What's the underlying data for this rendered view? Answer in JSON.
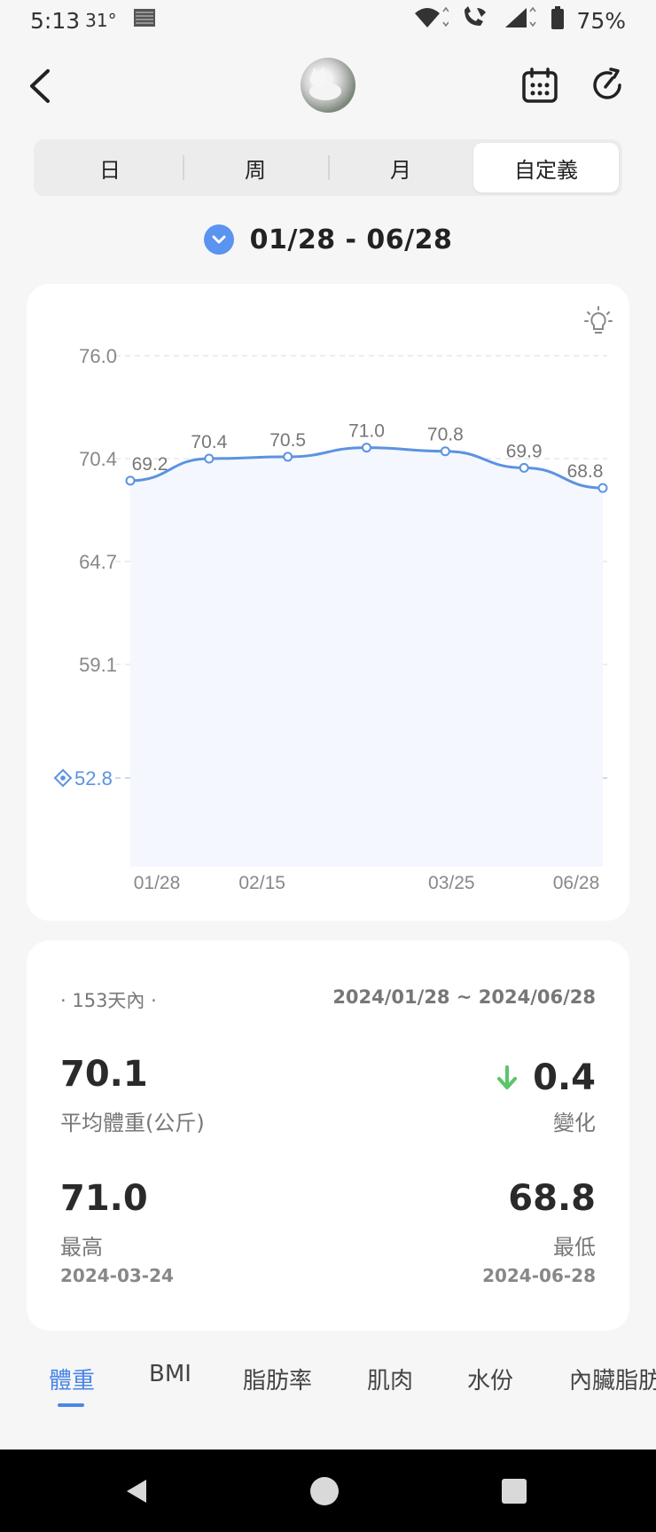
{
  "status": {
    "time": "5:13",
    "temperature": "31°",
    "battery": "75%"
  },
  "header": {
    "back_icon": "back-arrow-icon",
    "calendar_icon": "calendar-icon",
    "refresh_icon": "refresh-icon"
  },
  "segments": [
    {
      "label": "日",
      "active": false
    },
    {
      "label": "周",
      "active": false
    },
    {
      "label": "月",
      "active": false
    },
    {
      "label": "自定義",
      "active": true
    }
  ],
  "date_range": "01/28 - 06/28",
  "chart_data": {
    "type": "line",
    "x": [
      "01/28",
      "02/15",
      "03/25",
      "06/28"
    ],
    "points": [
      {
        "label": "69.2",
        "value": 69.2
      },
      {
        "label": "70.4",
        "value": 70.4
      },
      {
        "label": "70.5",
        "value": 70.5
      },
      {
        "label": "71.0",
        "value": 71.0
      },
      {
        "label": "70.8",
        "value": 70.8
      },
      {
        "label": "69.9",
        "value": 69.9
      },
      {
        "label": "68.8",
        "value": 68.8
      }
    ],
    "y_ticks": [
      "76.0",
      "70.4",
      "64.7",
      "59.1"
    ],
    "target_value": "52.8",
    "ylim": [
      52.8,
      76.0
    ],
    "grid": true,
    "line_color": "#5b93e0",
    "target_color": "#5b93e0"
  },
  "stats": {
    "period": "· 153天內 ·",
    "range": "2024/01/28 ~ 2024/06/28",
    "average_value": "70.1",
    "average_label": "平均體重(公斤)",
    "change_value": "0.4",
    "change_label": "變化",
    "change_direction": "down",
    "change_color": "#5cc46a",
    "max_value": "71.0",
    "max_label": "最高",
    "max_date": "2024-03-24",
    "min_value": "68.8",
    "min_label": "最低",
    "min_date": "2024-06-28"
  },
  "categories": [
    {
      "label": "體重",
      "active": true
    },
    {
      "label": "BMI",
      "active": false
    },
    {
      "label": "脂肪率",
      "active": false
    },
    {
      "label": "肌肉",
      "active": false
    },
    {
      "label": "水份",
      "active": false
    },
    {
      "label": "內臟脂肪",
      "active": false
    }
  ],
  "accent_color": "#4a86e8"
}
